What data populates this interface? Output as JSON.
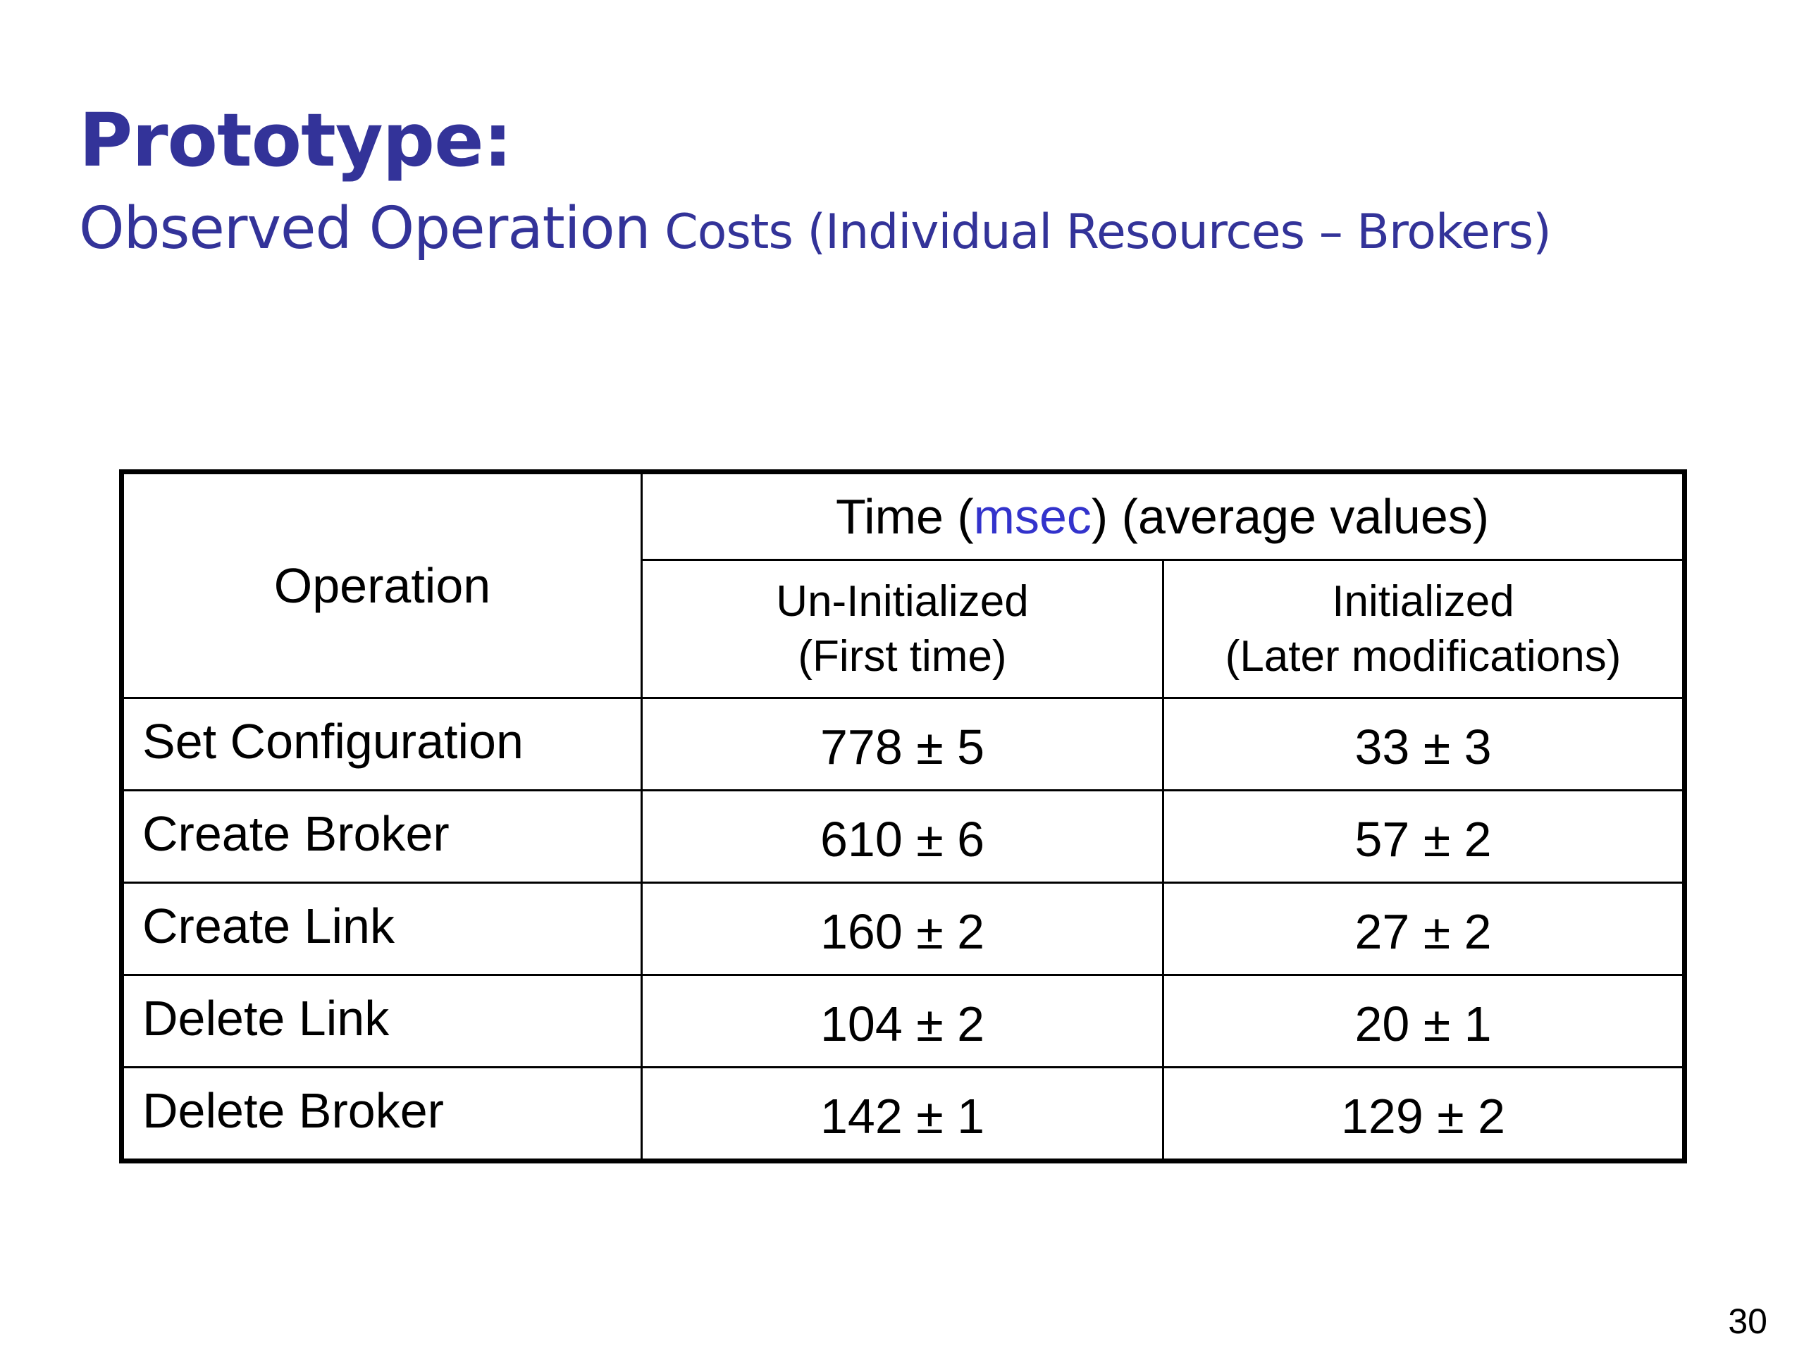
{
  "slide": {
    "title": "Prototype:",
    "subtitle_main": "Observed Operation",
    "subtitle_rest": " Costs (Individual Resources – Brokers)",
    "page_number": "30"
  },
  "table": {
    "operation_header": "Operation",
    "time_header": {
      "before": "Time (",
      "unit": "msec",
      "after": ") (average values)"
    },
    "subheaders": [
      {
        "line1": "Un-Initialized",
        "line2": "(First time)"
      },
      {
        "line1": "Initialized",
        "line2": "(Later modifications)"
      }
    ],
    "rows": [
      {
        "operation": "Set Configuration",
        "uninitialized": "778 ± 5",
        "initialized": "33 ± 3"
      },
      {
        "operation": "Create Broker",
        "uninitialized": "610 ± 6",
        "initialized": "57 ± 2"
      },
      {
        "operation": "Create Link",
        "uninitialized": "160 ± 2",
        "initialized": "27 ± 2"
      },
      {
        "operation": "Delete Link",
        "uninitialized": "104 ± 2",
        "initialized": "20 ± 1"
      },
      {
        "operation": "Delete Broker",
        "uninitialized": "142 ± 1",
        "initialized": "129 ± 2"
      }
    ]
  },
  "colors": {
    "title": "#333399",
    "accent": "#3333cc",
    "text": "#000000",
    "background": "#ffffff"
  }
}
